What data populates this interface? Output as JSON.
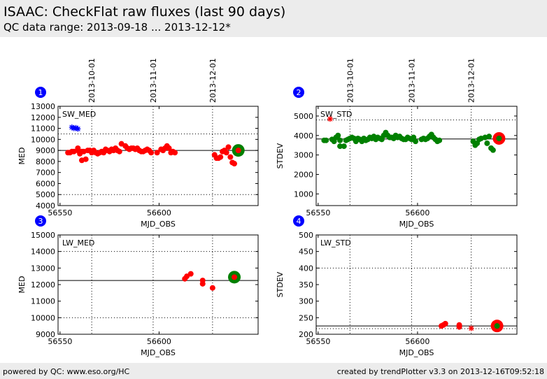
{
  "page": {
    "title": "ISAAC: CheckFlat raw fluxes (last 90 days)",
    "subtitle": "QC data range: 2013-09-18 ... 2013-12-12*"
  },
  "footer": {
    "left": "powered by QC: www.eso.org/HC",
    "right": "created by trendPlotter v3.3 on 2013-12-16T09:52:18"
  },
  "colors": {
    "data_point": "#ff0000",
    "highlight_point": "#008000",
    "outlier_star_blue": "#0000ff",
    "outlier_star_red": "#ff0000",
    "panel_number_badge": "#0000ff"
  },
  "chart_data": [
    {
      "panel_number": "1",
      "type": "scatter",
      "inset_label": "SW_MED",
      "xlabel": "MJD_OBS",
      "ylabel": "MED",
      "xlim": [
        56549,
        56650
      ],
      "ylim": [
        4000,
        13000
      ],
      "xticks": [
        56550,
        56600
      ],
      "yticks": [
        4000,
        5000,
        6000,
        7000,
        8000,
        9000,
        10000,
        11000,
        12000,
        13000
      ],
      "top_date_ticks": [
        {
          "label": "2013-10-01",
          "mjd": 56566
        },
        {
          "label": "2013-11-01",
          "mjd": 56597
        },
        {
          "label": "2013-12-01",
          "mjd": 56627
        }
      ],
      "reference_line": 9000,
      "dotted_hlines": [
        5000,
        10500
      ],
      "points": [
        [
          56554,
          8800
        ],
        [
          56555,
          8800
        ],
        [
          56556,
          8900
        ],
        [
          56557,
          8900
        ],
        [
          56559,
          9200
        ],
        [
          56559,
          9000
        ],
        [
          56560,
          8700
        ],
        [
          56561,
          8900
        ],
        [
          56561,
          8100
        ],
        [
          56562,
          8900
        ],
        [
          56563,
          8200
        ],
        [
          56564,
          9000
        ],
        [
          56565,
          9000
        ],
        [
          56566,
          8800
        ],
        [
          56567,
          9000
        ],
        [
          56568,
          8800
        ],
        [
          56569,
          8700
        ],
        [
          56570,
          8800
        ],
        [
          56571,
          8900
        ],
        [
          56572,
          8800
        ],
        [
          56573,
          9100
        ],
        [
          56574,
          9000
        ],
        [
          56575,
          8900
        ],
        [
          56576,
          9100
        ],
        [
          56577,
          9000
        ],
        [
          56578,
          9200
        ],
        [
          56579,
          9000
        ],
        [
          56580,
          8900
        ],
        [
          56581,
          9600
        ],
        [
          56583,
          9400
        ],
        [
          56584,
          9200
        ],
        [
          56585,
          9100
        ],
        [
          56586,
          9200
        ],
        [
          56587,
          9200
        ],
        [
          56588,
          9100
        ],
        [
          56589,
          9200
        ],
        [
          56590,
          9000
        ],
        [
          56591,
          8900
        ],
        [
          56592,
          8900
        ],
        [
          56593,
          9000
        ],
        [
          56594,
          9100
        ],
        [
          56595,
          9000
        ],
        [
          56596,
          8800
        ],
        [
          56599,
          8800
        ],
        [
          56601,
          9100
        ],
        [
          56602,
          9000
        ],
        [
          56603,
          9200
        ],
        [
          56604,
          9400
        ],
        [
          56605,
          9200
        ],
        [
          56606,
          8800
        ],
        [
          56607,
          8900
        ],
        [
          56608,
          8800
        ],
        [
          56628,
          8600
        ],
        [
          56629,
          8300
        ],
        [
          56630,
          8300
        ],
        [
          56631,
          8400
        ],
        [
          56632,
          8900
        ],
        [
          56633,
          9000
        ],
        [
          56634,
          8800
        ],
        [
          56635,
          9300
        ],
        [
          56636,
          8400
        ],
        [
          56637,
          7900
        ],
        [
          56638,
          7800
        ]
      ],
      "highlight_points": [
        [
          56640,
          9000
        ]
      ],
      "outlier_stars": [
        {
          "x": 56556,
          "y": 11100,
          "color": "blue"
        },
        {
          "x": 56557,
          "y": 11000,
          "color": "blue"
        },
        {
          "x": 56558,
          "y": 11050,
          "color": "blue"
        },
        {
          "x": 56559,
          "y": 10950,
          "color": "blue"
        }
      ]
    },
    {
      "panel_number": "2",
      "type": "scatter",
      "inset_label": "SW_STD",
      "xlabel": "MJD_OBS",
      "ylabel": "STDEV",
      "xlim": [
        56549,
        56650
      ],
      "ylim": [
        400,
        5500
      ],
      "xticks": [
        56550,
        56600
      ],
      "yticks": [
        1000,
        2000,
        3000,
        4000,
        5000
      ],
      "top_date_ticks": [
        {
          "label": "2013-10-01",
          "mjd": 56566
        },
        {
          "label": "2013-11-01",
          "mjd": 56597
        },
        {
          "label": "2013-12-01",
          "mjd": 56627
        }
      ],
      "reference_line": 3820,
      "dotted_hlines": [
        4800
      ],
      "points": [
        [
          56553,
          3750
        ],
        [
          56554,
          3750
        ],
        [
          56557,
          3800
        ],
        [
          56558,
          3700
        ],
        [
          56559,
          3900
        ],
        [
          56560,
          4000
        ],
        [
          56561,
          3750
        ],
        [
          56561,
          3450
        ],
        [
          56563,
          3450
        ],
        [
          56564,
          3750
        ],
        [
          56565,
          3800
        ],
        [
          56566,
          3850
        ],
        [
          56567,
          3900
        ],
        [
          56568,
          3850
        ],
        [
          56569,
          3800
        ],
        [
          56569,
          3700
        ],
        [
          56570,
          3850
        ],
        [
          56571,
          3800
        ],
        [
          56572,
          3700
        ],
        [
          56573,
          3850
        ],
        [
          56574,
          3750
        ],
        [
          56575,
          3800
        ],
        [
          56576,
          3900
        ],
        [
          56577,
          3850
        ],
        [
          56578,
          3950
        ],
        [
          56579,
          3800
        ],
        [
          56580,
          3900
        ],
        [
          56581,
          3850
        ],
        [
          56582,
          3800
        ],
        [
          56583,
          4000
        ],
        [
          56584,
          4150
        ],
        [
          56585,
          4000
        ],
        [
          56586,
          3900
        ],
        [
          56587,
          3900
        ],
        [
          56588,
          3850
        ],
        [
          56589,
          4000
        ],
        [
          56590,
          3900
        ],
        [
          56591,
          3950
        ],
        [
          56592,
          3850
        ],
        [
          56593,
          3800
        ],
        [
          56594,
          3800
        ],
        [
          56595,
          3900
        ],
        [
          56596,
          3850
        ],
        [
          56597,
          3800
        ],
        [
          56598,
          3900
        ],
        [
          56599,
          3700
        ],
        [
          56602,
          3800
        ],
        [
          56603,
          3850
        ],
        [
          56604,
          3800
        ],
        [
          56605,
          3850
        ],
        [
          56606,
          3950
        ],
        [
          56607,
          4050
        ],
        [
          56608,
          3900
        ],
        [
          56609,
          3800
        ],
        [
          56610,
          3700
        ],
        [
          56611,
          3750
        ],
        [
          56628,
          3700
        ],
        [
          56629,
          3500
        ],
        [
          56630,
          3600
        ],
        [
          56631,
          3800
        ],
        [
          56632,
          3850
        ],
        [
          56634,
          3900
        ],
        [
          56635,
          3600
        ],
        [
          56636,
          3950
        ],
        [
          56637,
          3350
        ],
        [
          56638,
          3250
        ]
      ],
      "highlight_points": [
        [
          56641,
          3850
        ]
      ],
      "outlier_stars": [
        {
          "x": 56556,
          "y": 4850,
          "color": "red"
        }
      ]
    },
    {
      "panel_number": "3",
      "type": "scatter",
      "inset_label": "LW_MED",
      "xlabel": "MJD_OBS",
      "ylabel": "MED",
      "xlim": [
        56549,
        56650
      ],
      "ylim": [
        9000,
        15000
      ],
      "xticks": [
        56550,
        56600
      ],
      "yticks": [
        9000,
        10000,
        11000,
        12000,
        13000,
        14000,
        15000
      ],
      "dotted_vlines": [
        56566,
        56597,
        56627
      ],
      "reference_line": 12250,
      "dotted_hlines": [
        10000,
        14000
      ],
      "points": [
        [
          56613,
          12350
        ],
        [
          56614,
          12500
        ],
        [
          56616,
          12650
        ],
        [
          56622,
          12050
        ],
        [
          56622,
          12250
        ],
        [
          56627,
          11800
        ]
      ],
      "highlight_points": [
        [
          56638,
          12450
        ]
      ],
      "outlier_stars": []
    },
    {
      "panel_number": "4",
      "type": "scatter",
      "inset_label": "LW_STD",
      "xlabel": "MJD_OBS",
      "ylabel": "STDEV",
      "xlim": [
        56549,
        56650
      ],
      "ylim": [
        200,
        500
      ],
      "xticks": [
        56550,
        56600
      ],
      "yticks": [
        200,
        250,
        300,
        350,
        400,
        450,
        500
      ],
      "dotted_vlines": [
        56566,
        56597,
        56627
      ],
      "reference_line": 225,
      "dotted_hlines": [
        217,
        400
      ],
      "points": [
        [
          56612,
          225
        ],
        [
          56613,
          228
        ],
        [
          56614,
          232
        ],
        [
          56621,
          222
        ],
        [
          56621,
          228
        ]
      ],
      "highlight_points": [
        [
          56640,
          225
        ]
      ],
      "outlier_stars": [
        {
          "x": 56627,
          "y": 218,
          "color": "red"
        }
      ]
    }
  ]
}
